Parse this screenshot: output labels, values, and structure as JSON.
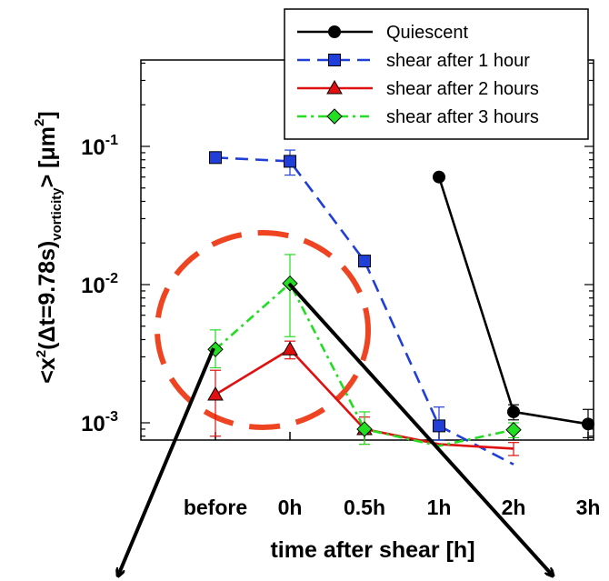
{
  "chart_data": {
    "type": "line",
    "categories": [
      "before",
      "0h",
      "0.5h",
      "1h",
      "2h",
      "3h"
    ],
    "xlabel": "time after shear [h]",
    "ylabel": {
      "prefix": "<x",
      "exp": "2",
      "mid": "(Δt=9.78s)",
      "sub": "vorticity",
      "suffix": "> [μm",
      "unit_exp": "2",
      "close": "]"
    },
    "yscale": "log",
    "ylim": [
      0.0005,
      0.3
    ],
    "yticks": [
      {
        "base": "10",
        "exp": "-1",
        "value": 0.1
      },
      {
        "base": "10",
        "exp": "-2",
        "value": 0.01
      },
      {
        "base": "10",
        "exp": "-3",
        "value": 0.001
      }
    ],
    "legend_position": "top-right",
    "series": [
      {
        "name": "Quiescent",
        "color": "#000000",
        "marker": "circle",
        "dash": "solid",
        "points": [
          {
            "x": "1h",
            "y": 0.06
          },
          {
            "x": "2h",
            "y": 0.0012,
            "err": [
              0.00105,
              0.00135
            ]
          },
          {
            "x": "3h",
            "y": 0.00098,
            "err": [
              0.00078,
              0.00125
            ]
          }
        ]
      },
      {
        "name": "shear after 1 hour",
        "color": "#1f3fd8",
        "marker": "square",
        "dash": "dashed",
        "points": [
          {
            "x": "before",
            "y": 0.083
          },
          {
            "x": "0h",
            "y": 0.078,
            "err": [
              0.062,
              0.094
            ]
          },
          {
            "x": "0.5h",
            "y": 0.0148,
            "err": [
              0.0135,
              0.0162
            ]
          },
          {
            "x": "1h",
            "y": 0.00095,
            "err": [
              0.00075,
              0.0013
            ]
          },
          {
            "x": "2h",
            "y": 0.0005
          }
        ]
      },
      {
        "name": "shear after 2 hours",
        "color": "#e01010",
        "marker": "triangle",
        "dash": "solid",
        "points": [
          {
            "x": "before",
            "y": 0.0016,
            "err": [
              0.0008,
              0.0024
            ]
          },
          {
            "x": "0h",
            "y": 0.0034,
            "err": [
              0.0029,
              0.0039
            ]
          },
          {
            "x": "0.5h",
            "y": 0.0009,
            "err": [
              0.0007,
              0.0011
            ]
          },
          {
            "x": "1h",
            "y": 0.0007
          },
          {
            "x": "2h",
            "y": 0.00065,
            "err": [
              0.00058,
              0.00072
            ]
          }
        ]
      },
      {
        "name": "shear after 3 hours",
        "color": "#22dd22",
        "marker": "diamond",
        "dash": "dashdot",
        "points": [
          {
            "x": "before",
            "y": 0.0034,
            "err": [
              0.0025,
              0.0047
            ]
          },
          {
            "x": "0h",
            "y": 0.0102,
            "err": [
              0.0042,
              0.0165
            ]
          },
          {
            "x": "0.5h",
            "y": 0.0009,
            "err": [
              0.0007,
              0.0012
            ]
          },
          {
            "x": "1h",
            "y": 0.00068
          },
          {
            "x": "2h",
            "y": 0.00089,
            "err": [
              0.00078,
              0.001
            ]
          }
        ]
      }
    ],
    "annotations": {
      "circle_color": "#ee4422",
      "arrow_color": "#000000"
    }
  }
}
